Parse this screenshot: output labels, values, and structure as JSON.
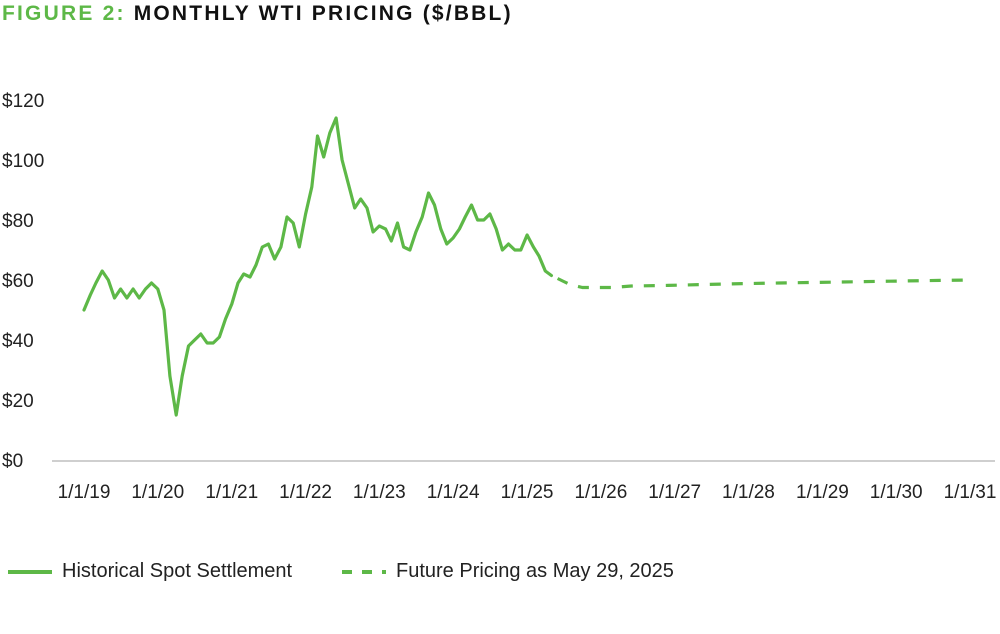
{
  "title": {
    "prefix": "FIGURE 2:",
    "text": "MONTHLY WTI PRICING ($/BBL)"
  },
  "colors": {
    "accent": "#5db847",
    "line": "#5db847",
    "text": "#222222",
    "axis": "#bfbfbf"
  },
  "chart_data": {
    "type": "line",
    "title": "FIGURE 2: MONTHLY WTI PRICING ($/BBL)",
    "xlabel": "",
    "ylabel": "",
    "ylim": [
      0,
      120
    ],
    "xlim": [
      "2019-01-01",
      "2031-01-01"
    ],
    "x_tick_labels": [
      "1/1/19",
      "1/1/20",
      "1/1/21",
      "1/1/22",
      "1/1/23",
      "1/1/24",
      "1/1/25",
      "1/1/26",
      "1/1/27",
      "1/1/28",
      "1/1/29",
      "1/1/30",
      "1/1/31"
    ],
    "y_tick_labels": [
      "$0",
      "$20",
      "$40",
      "$60",
      "$80",
      "$100",
      "$120"
    ],
    "grid": false,
    "legend_position": "bottom",
    "series": [
      {
        "name": "Historical Spot Settlement",
        "style": "solid",
        "points": [
          [
            "2019-01-01",
            50
          ],
          [
            "2019-02-01",
            55
          ],
          [
            "2019-03-01",
            59
          ],
          [
            "2019-04-01",
            63
          ],
          [
            "2019-05-01",
            60
          ],
          [
            "2019-06-01",
            54
          ],
          [
            "2019-07-01",
            57
          ],
          [
            "2019-08-01",
            54
          ],
          [
            "2019-09-01",
            57
          ],
          [
            "2019-10-01",
            54
          ],
          [
            "2019-11-01",
            57
          ],
          [
            "2019-12-01",
            59
          ],
          [
            "2020-01-01",
            57
          ],
          [
            "2020-02-01",
            50
          ],
          [
            "2020-03-01",
            28
          ],
          [
            "2020-04-01",
            15
          ],
          [
            "2020-05-01",
            28
          ],
          [
            "2020-06-01",
            38
          ],
          [
            "2020-07-01",
            40
          ],
          [
            "2020-08-01",
            42
          ],
          [
            "2020-09-01",
            39
          ],
          [
            "2020-10-01",
            39
          ],
          [
            "2020-11-01",
            41
          ],
          [
            "2020-12-01",
            47
          ],
          [
            "2021-01-01",
            52
          ],
          [
            "2021-02-01",
            59
          ],
          [
            "2021-03-01",
            62
          ],
          [
            "2021-04-01",
            61
          ],
          [
            "2021-05-01",
            65
          ],
          [
            "2021-06-01",
            71
          ],
          [
            "2021-07-01",
            72
          ],
          [
            "2021-08-01",
            67
          ],
          [
            "2021-09-01",
            71
          ],
          [
            "2021-10-01",
            81
          ],
          [
            "2021-11-01",
            79
          ],
          [
            "2021-12-01",
            71
          ],
          [
            "2022-01-01",
            82
          ],
          [
            "2022-02-01",
            91
          ],
          [
            "2022-03-01",
            108
          ],
          [
            "2022-04-01",
            101
          ],
          [
            "2022-05-01",
            109
          ],
          [
            "2022-06-01",
            114
          ],
          [
            "2022-07-01",
            100
          ],
          [
            "2022-08-01",
            92
          ],
          [
            "2022-09-01",
            84
          ],
          [
            "2022-10-01",
            87
          ],
          [
            "2022-11-01",
            84
          ],
          [
            "2022-12-01",
            76
          ],
          [
            "2023-01-01",
            78
          ],
          [
            "2023-02-01",
            77
          ],
          [
            "2023-03-01",
            73
          ],
          [
            "2023-04-01",
            79
          ],
          [
            "2023-05-01",
            71
          ],
          [
            "2023-06-01",
            70
          ],
          [
            "2023-07-01",
            76
          ],
          [
            "2023-08-01",
            81
          ],
          [
            "2023-09-01",
            89
          ],
          [
            "2023-10-01",
            85
          ],
          [
            "2023-11-01",
            77
          ],
          [
            "2023-12-01",
            72
          ],
          [
            "2024-01-01",
            74
          ],
          [
            "2024-02-01",
            77
          ],
          [
            "2024-03-01",
            81
          ],
          [
            "2024-04-01",
            85
          ],
          [
            "2024-05-01",
            80
          ],
          [
            "2024-06-01",
            80
          ],
          [
            "2024-07-01",
            82
          ],
          [
            "2024-08-01",
            77
          ],
          [
            "2024-09-01",
            70
          ],
          [
            "2024-10-01",
            72
          ],
          [
            "2024-11-01",
            70
          ],
          [
            "2024-12-01",
            70
          ],
          [
            "2025-01-01",
            75
          ],
          [
            "2025-02-01",
            71
          ],
          [
            "2025-03-01",
            68
          ],
          [
            "2025-04-01",
            63
          ],
          [
            "2025-05-01",
            61.5
          ]
        ]
      },
      {
        "name": "Future Pricing as May 29, 2025",
        "style": "dashed",
        "points": [
          [
            "2025-06-01",
            60.5
          ],
          [
            "2025-07-01",
            59.5
          ],
          [
            "2025-08-01",
            58.5
          ],
          [
            "2025-09-01",
            58
          ],
          [
            "2025-10-01",
            57.5
          ],
          [
            "2025-12-01",
            57.5
          ],
          [
            "2026-03-01",
            57.5
          ],
          [
            "2026-06-01",
            58
          ],
          [
            "2026-12-01",
            58.2
          ],
          [
            "2027-06-01",
            58.5
          ],
          [
            "2027-12-01",
            58.8
          ],
          [
            "2028-06-01",
            59
          ],
          [
            "2028-12-01",
            59.2
          ],
          [
            "2029-06-01",
            59.4
          ],
          [
            "2029-12-01",
            59.6
          ],
          [
            "2030-06-01",
            59.8
          ],
          [
            "2031-01-01",
            60
          ]
        ]
      }
    ]
  },
  "legend": {
    "items": [
      {
        "label": "Historical Spot Settlement",
        "style": "solid"
      },
      {
        "label": "Future Pricing as May 29, 2025",
        "style": "dashed"
      }
    ]
  }
}
